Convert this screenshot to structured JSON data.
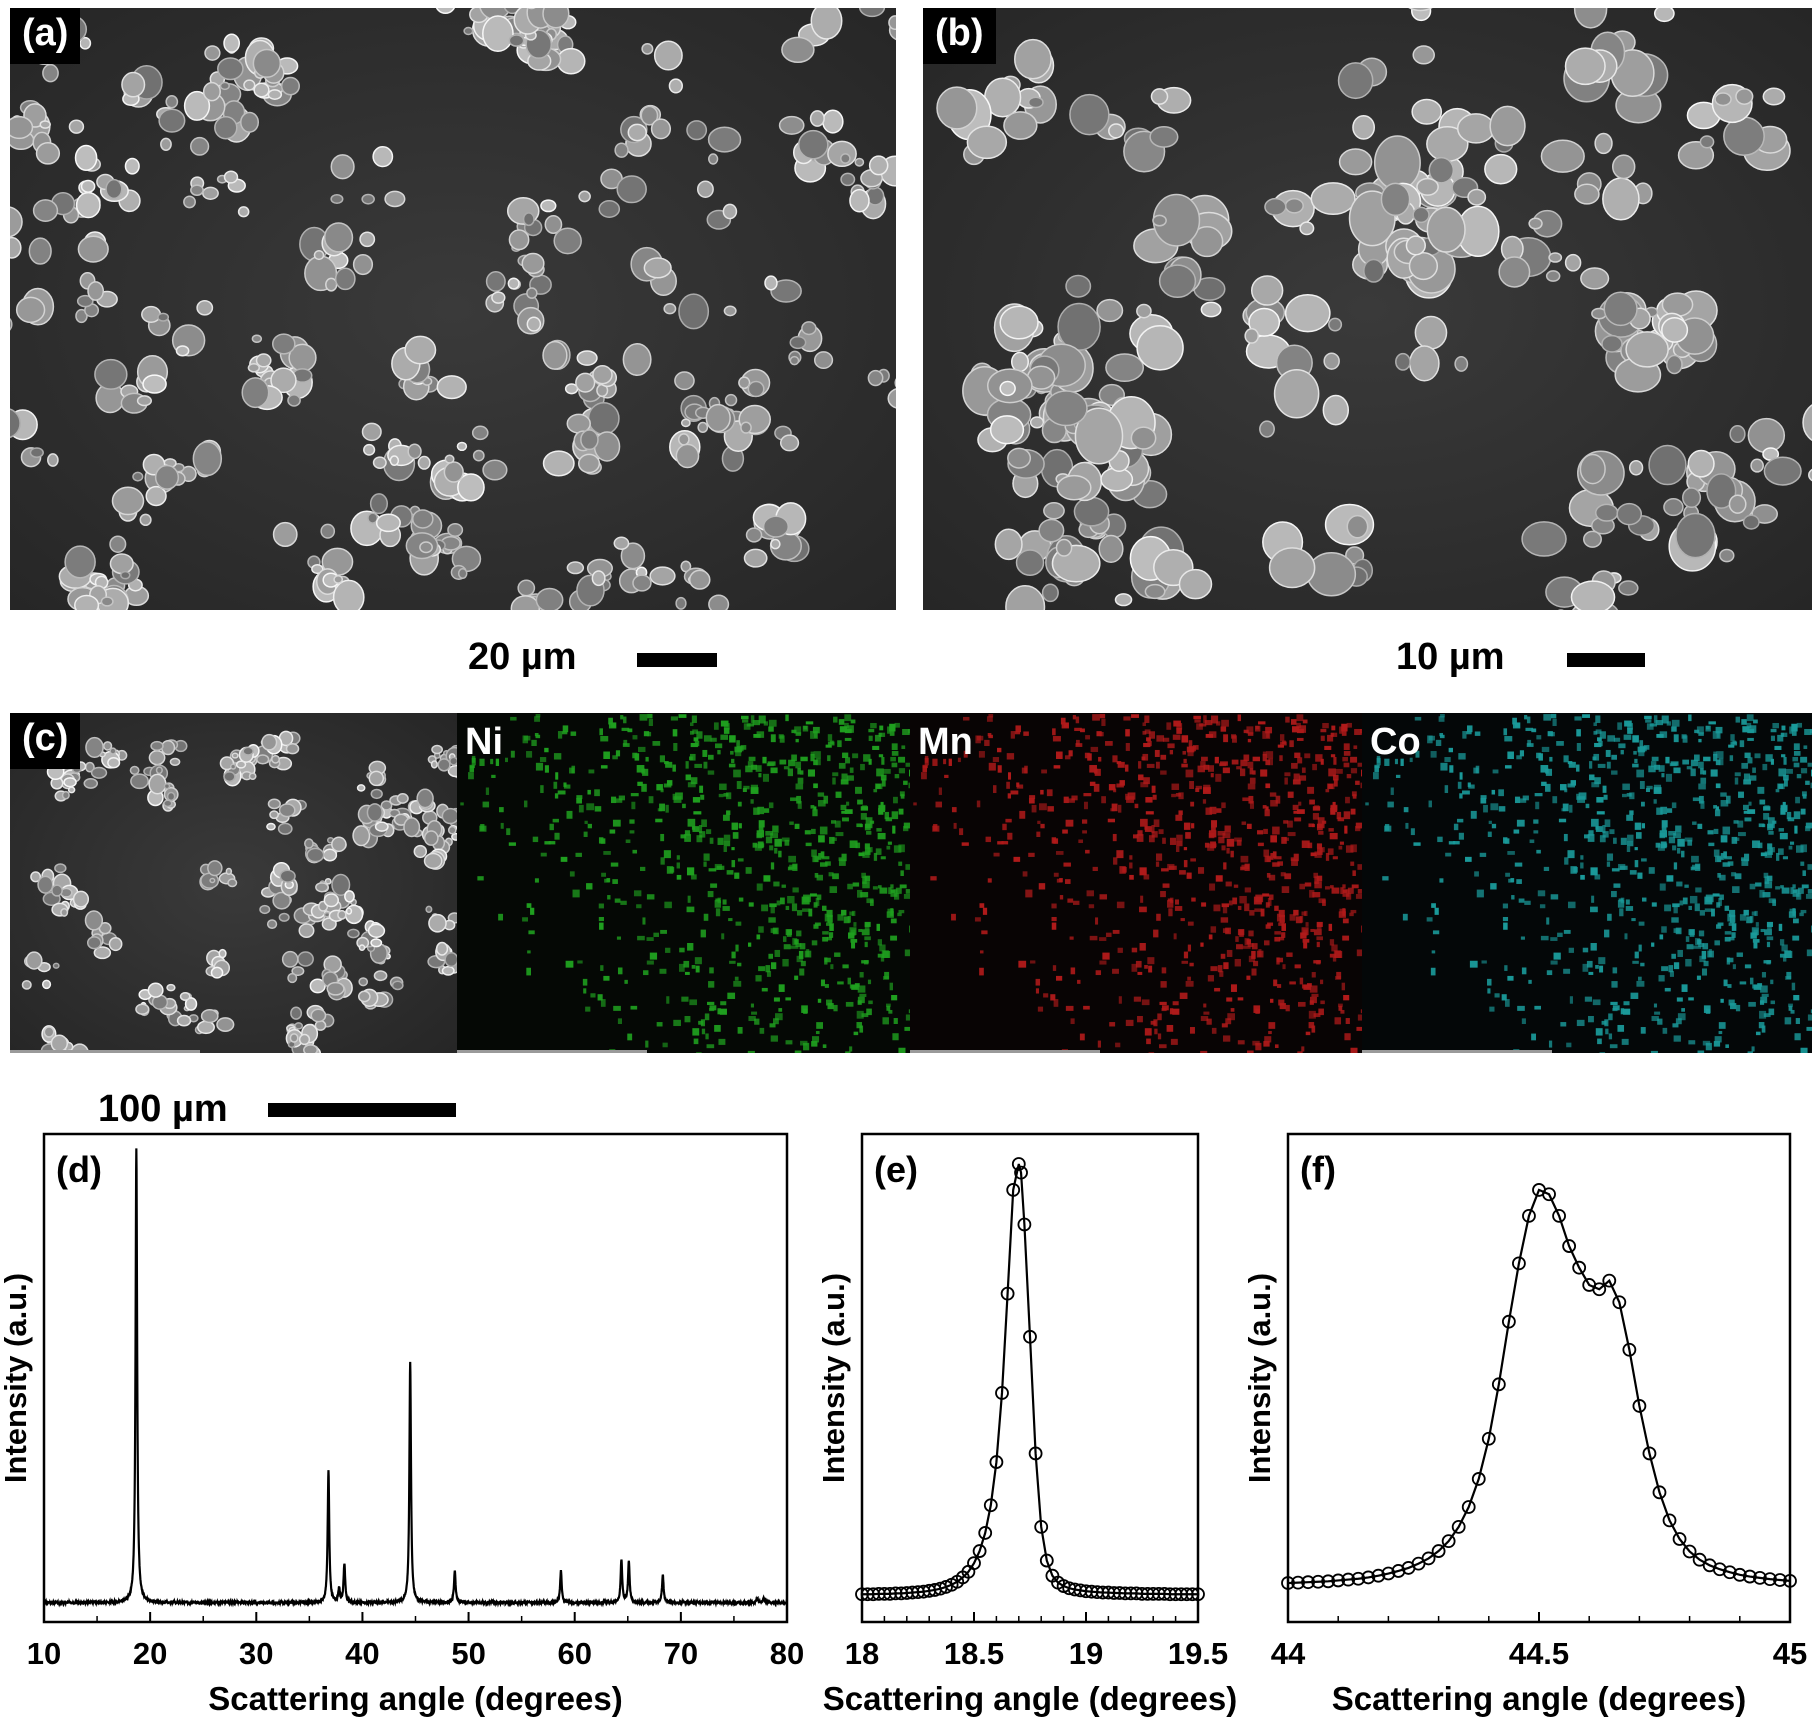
{
  "panels": {
    "a": {
      "tag": "(a)",
      "scale_label": "20 µm"
    },
    "b": {
      "tag": "(b)",
      "scale_label": "10 µm"
    },
    "c": {
      "tag": "(c)",
      "elements": [
        {
          "symbol": "Ni",
          "color": "#1fa01f"
        },
        {
          "symbol": "Mn",
          "color": "#b01a1a"
        },
        {
          "symbol": "Co",
          "color": "#1a9a9a"
        }
      ],
      "scale_label": "100 µm"
    }
  },
  "chart_data": [
    {
      "panel": "(d)",
      "type": "line",
      "xlabel": "Scattering angle (degrees)",
      "ylabel": "Intensity (a.u.)",
      "xlim": [
        10,
        80
      ],
      "xticks": [
        10,
        20,
        30,
        40,
        50,
        60,
        70,
        80
      ],
      "x_unit": "degrees",
      "peaks": [
        {
          "x": 18.7,
          "y": 1.0
        },
        {
          "x": 36.8,
          "y": 0.29
        },
        {
          "x": 37.8,
          "y": 0.03
        },
        {
          "x": 38.3,
          "y": 0.085
        },
        {
          "x": 44.5,
          "y": 0.53
        },
        {
          "x": 48.7,
          "y": 0.07
        },
        {
          "x": 58.7,
          "y": 0.07
        },
        {
          "x": 64.4,
          "y": 0.095
        },
        {
          "x": 65.1,
          "y": 0.09
        },
        {
          "x": 68.3,
          "y": 0.06
        },
        {
          "x": 77.2,
          "y": 0.01
        },
        {
          "x": 77.8,
          "y": 0.01
        }
      ]
    },
    {
      "panel": "(e)",
      "type": "line",
      "xlabel": "Scattering angle (degrees)",
      "ylabel": "Intensity (a.u.)",
      "xlim": [
        18,
        19.5
      ],
      "xticks": [
        "18",
        "18.5",
        "19",
        "19.5"
      ],
      "series": [
        {
          "marker": "open-circle",
          "x": [
            18.0,
            18.025,
            18.05,
            18.075,
            18.1,
            18.125,
            18.15,
            18.175,
            18.2,
            18.225,
            18.25,
            18.275,
            18.3,
            18.325,
            18.35,
            18.375,
            18.4,
            18.425,
            18.45,
            18.475,
            18.5,
            18.525,
            18.55,
            18.575,
            18.6,
            18.625,
            18.65,
            18.675,
            18.7,
            18.71,
            18.725,
            18.75,
            18.775,
            18.8,
            18.825,
            18.85,
            18.875,
            18.9,
            18.925,
            18.95,
            18.975,
            19.0,
            19.025,
            19.05,
            19.075,
            19.1,
            19.125,
            19.15,
            19.175,
            19.2,
            19.225,
            19.25,
            19.275,
            19.3,
            19.325,
            19.35,
            19.375,
            19.4,
            19.425,
            19.45,
            19.475,
            19.5
          ],
          "y": [
            0.004,
            0.004,
            0.004,
            0.005,
            0.005,
            0.005,
            0.006,
            0.006,
            0.007,
            0.008,
            0.009,
            0.01,
            0.012,
            0.014,
            0.017,
            0.021,
            0.026,
            0.033,
            0.043,
            0.056,
            0.076,
            0.104,
            0.146,
            0.21,
            0.31,
            0.47,
            0.7,
            0.94,
            1.0,
            0.98,
            0.86,
            0.6,
            0.33,
            0.16,
            0.082,
            0.047,
            0.031,
            0.023,
            0.018,
            0.015,
            0.013,
            0.011,
            0.01,
            0.009,
            0.008,
            0.008,
            0.007,
            0.007,
            0.006,
            0.006,
            0.006,
            0.005,
            0.005,
            0.005,
            0.005,
            0.005,
            0.004,
            0.004,
            0.004,
            0.004,
            0.004,
            0.004
          ]
        }
      ]
    },
    {
      "panel": "(f)",
      "type": "line",
      "xlabel": "Scattering angle (degrees)",
      "ylabel": "Intensity (a.u.)",
      "xlim": [
        44,
        45
      ],
      "xticks": [
        "44",
        "44.5",
        "45"
      ],
      "series": [
        {
          "marker": "open-circle",
          "x": [
            44.0,
            44.02,
            44.04,
            44.06,
            44.08,
            44.1,
            44.12,
            44.14,
            44.16,
            44.18,
            44.2,
            44.22,
            44.24,
            44.26,
            44.28,
            44.3,
            44.32,
            44.34,
            44.36,
            44.38,
            44.4,
            44.42,
            44.44,
            44.46,
            44.48,
            44.5,
            44.52,
            44.54,
            44.56,
            44.58,
            44.6,
            44.62,
            44.64,
            44.66,
            44.68,
            44.7,
            44.72,
            44.74,
            44.76,
            44.78,
            44.8,
            44.82,
            44.84,
            44.86,
            44.88,
            44.9,
            44.92,
            44.94,
            44.96,
            44.98,
            45.0
          ],
          "y": [
            0.03,
            0.031,
            0.032,
            0.033,
            0.034,
            0.036,
            0.038,
            0.04,
            0.043,
            0.047,
            0.052,
            0.058,
            0.065,
            0.075,
            0.087,
            0.104,
            0.127,
            0.16,
            0.206,
            0.271,
            0.364,
            0.49,
            0.635,
            0.77,
            0.88,
            0.94,
            0.93,
            0.88,
            0.81,
            0.76,
            0.72,
            0.71,
            0.73,
            0.68,
            0.57,
            0.44,
            0.33,
            0.24,
            0.175,
            0.132,
            0.103,
            0.084,
            0.071,
            0.062,
            0.055,
            0.049,
            0.045,
            0.042,
            0.039,
            0.037,
            0.035
          ]
        }
      ]
    }
  ]
}
